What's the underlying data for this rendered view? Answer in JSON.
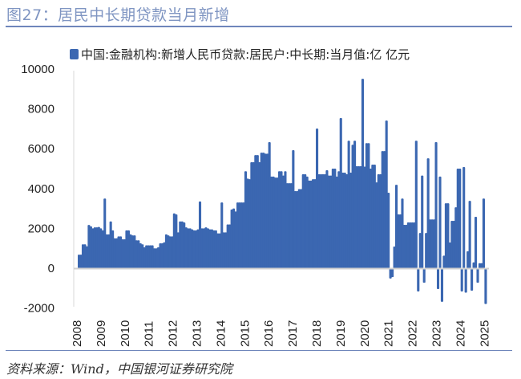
{
  "header": {
    "title": "图27：居民中长期贷款当月新增"
  },
  "footer": {
    "source": "资料来源：Wind，中国银河证券研究院"
  },
  "chart_data": {
    "type": "bar",
    "title": "",
    "xlabel": "",
    "ylabel": "",
    "ylim": [
      -2000,
      10000
    ],
    "yticks": [
      "10000",
      "8000",
      "6000",
      "4000",
      "2000",
      "0",
      "-2000"
    ],
    "xtick_labels": [
      "2008",
      "2009",
      "2010",
      "2011",
      "2012",
      "2013",
      "2014",
      "2015",
      "2016",
      "2017",
      "2018",
      "2019",
      "2020",
      "2021",
      "2022",
      "2023",
      "2024",
      "2025"
    ],
    "legend": {
      "position": "top",
      "label": "中国:金融机构:新增人民币贷款:居民户:中长期:当月值:亿 亿元"
    },
    "grid": false,
    "color": "#3b67b1",
    "x_range": [
      "2008-03",
      "2025-04"
    ],
    "series": [
      {
        "name": "中国:金融机构:新增人民币贷款:居民户:中长期:当月值:亿 亿元",
        "values": [
          680,
          680,
          1200,
          1200,
          1100,
          2170,
          2100,
          2000,
          2050,
          2050,
          2070,
          2000,
          1900,
          3500,
          1700,
          1700,
          2350,
          1900,
          1500,
          1500,
          1600,
          1600,
          1450,
          1450,
          1900,
          1900,
          1700,
          1650,
          1650,
          1400,
          1400,
          1250,
          1200,
          1050,
          1150,
          1150,
          1150,
          1150,
          1000,
          1000,
          1050,
          1250,
          1250,
          1300,
          1700,
          1650,
          1600,
          1600,
          2750,
          2700,
          1800,
          2350,
          2350,
          2300,
          2050,
          2000,
          2000,
          1950,
          1900,
          1900,
          1950,
          3350,
          2000,
          2000,
          2050,
          2000,
          1950,
          1950,
          1900,
          1900,
          1750,
          1750,
          3300,
          1800,
          1800,
          2200,
          2200,
          2950,
          3000,
          2850,
          3300,
          3300,
          3300,
          3300,
          4870,
          4500,
          4470,
          5320,
          5320,
          5680,
          5680,
          5320,
          5800,
          5800,
          5750,
          5750,
          6330,
          4600,
          4600,
          4550,
          4550,
          4870,
          4870,
          4650,
          4870,
          4270,
          4270,
          4270,
          5930,
          3870,
          3870,
          3970,
          3970,
          4720,
          4720,
          4600,
          4400,
          4400,
          4470,
          4470,
          7010,
          4720,
          4720,
          4720,
          4720,
          4920,
          4650,
          4650,
          5000,
          5000,
          4600,
          4870,
          7540,
          4800,
          4800,
          4720,
          6400,
          4800,
          6200,
          6400,
          5120,
          5120,
          5120,
          9510,
          5100,
          6280,
          6280,
          5000,
          5200,
          5200,
          4310,
          4720,
          4720,
          5880,
          5880,
          7415,
          3790,
          -520,
          -450,
          1090,
          4190,
          2700,
          2700,
          3500,
          2180,
          2180,
          2300,
          2300,
          2300,
          2300,
          6400,
          -1170,
          1770,
          4650,
          -730,
          1770,
          5520,
          2450,
          2450,
          2450,
          6330,
          -1050,
          4600,
          -1690,
          630,
          3260,
          3260,
          1290,
          2380,
          2380,
          3060,
          5000,
          5000,
          -1170,
          5080,
          -1230,
          850,
          3380,
          -1130,
          290,
          2580,
          -730,
          250,
          250,
          3500,
          -1800
        ]
      }
    ]
  }
}
